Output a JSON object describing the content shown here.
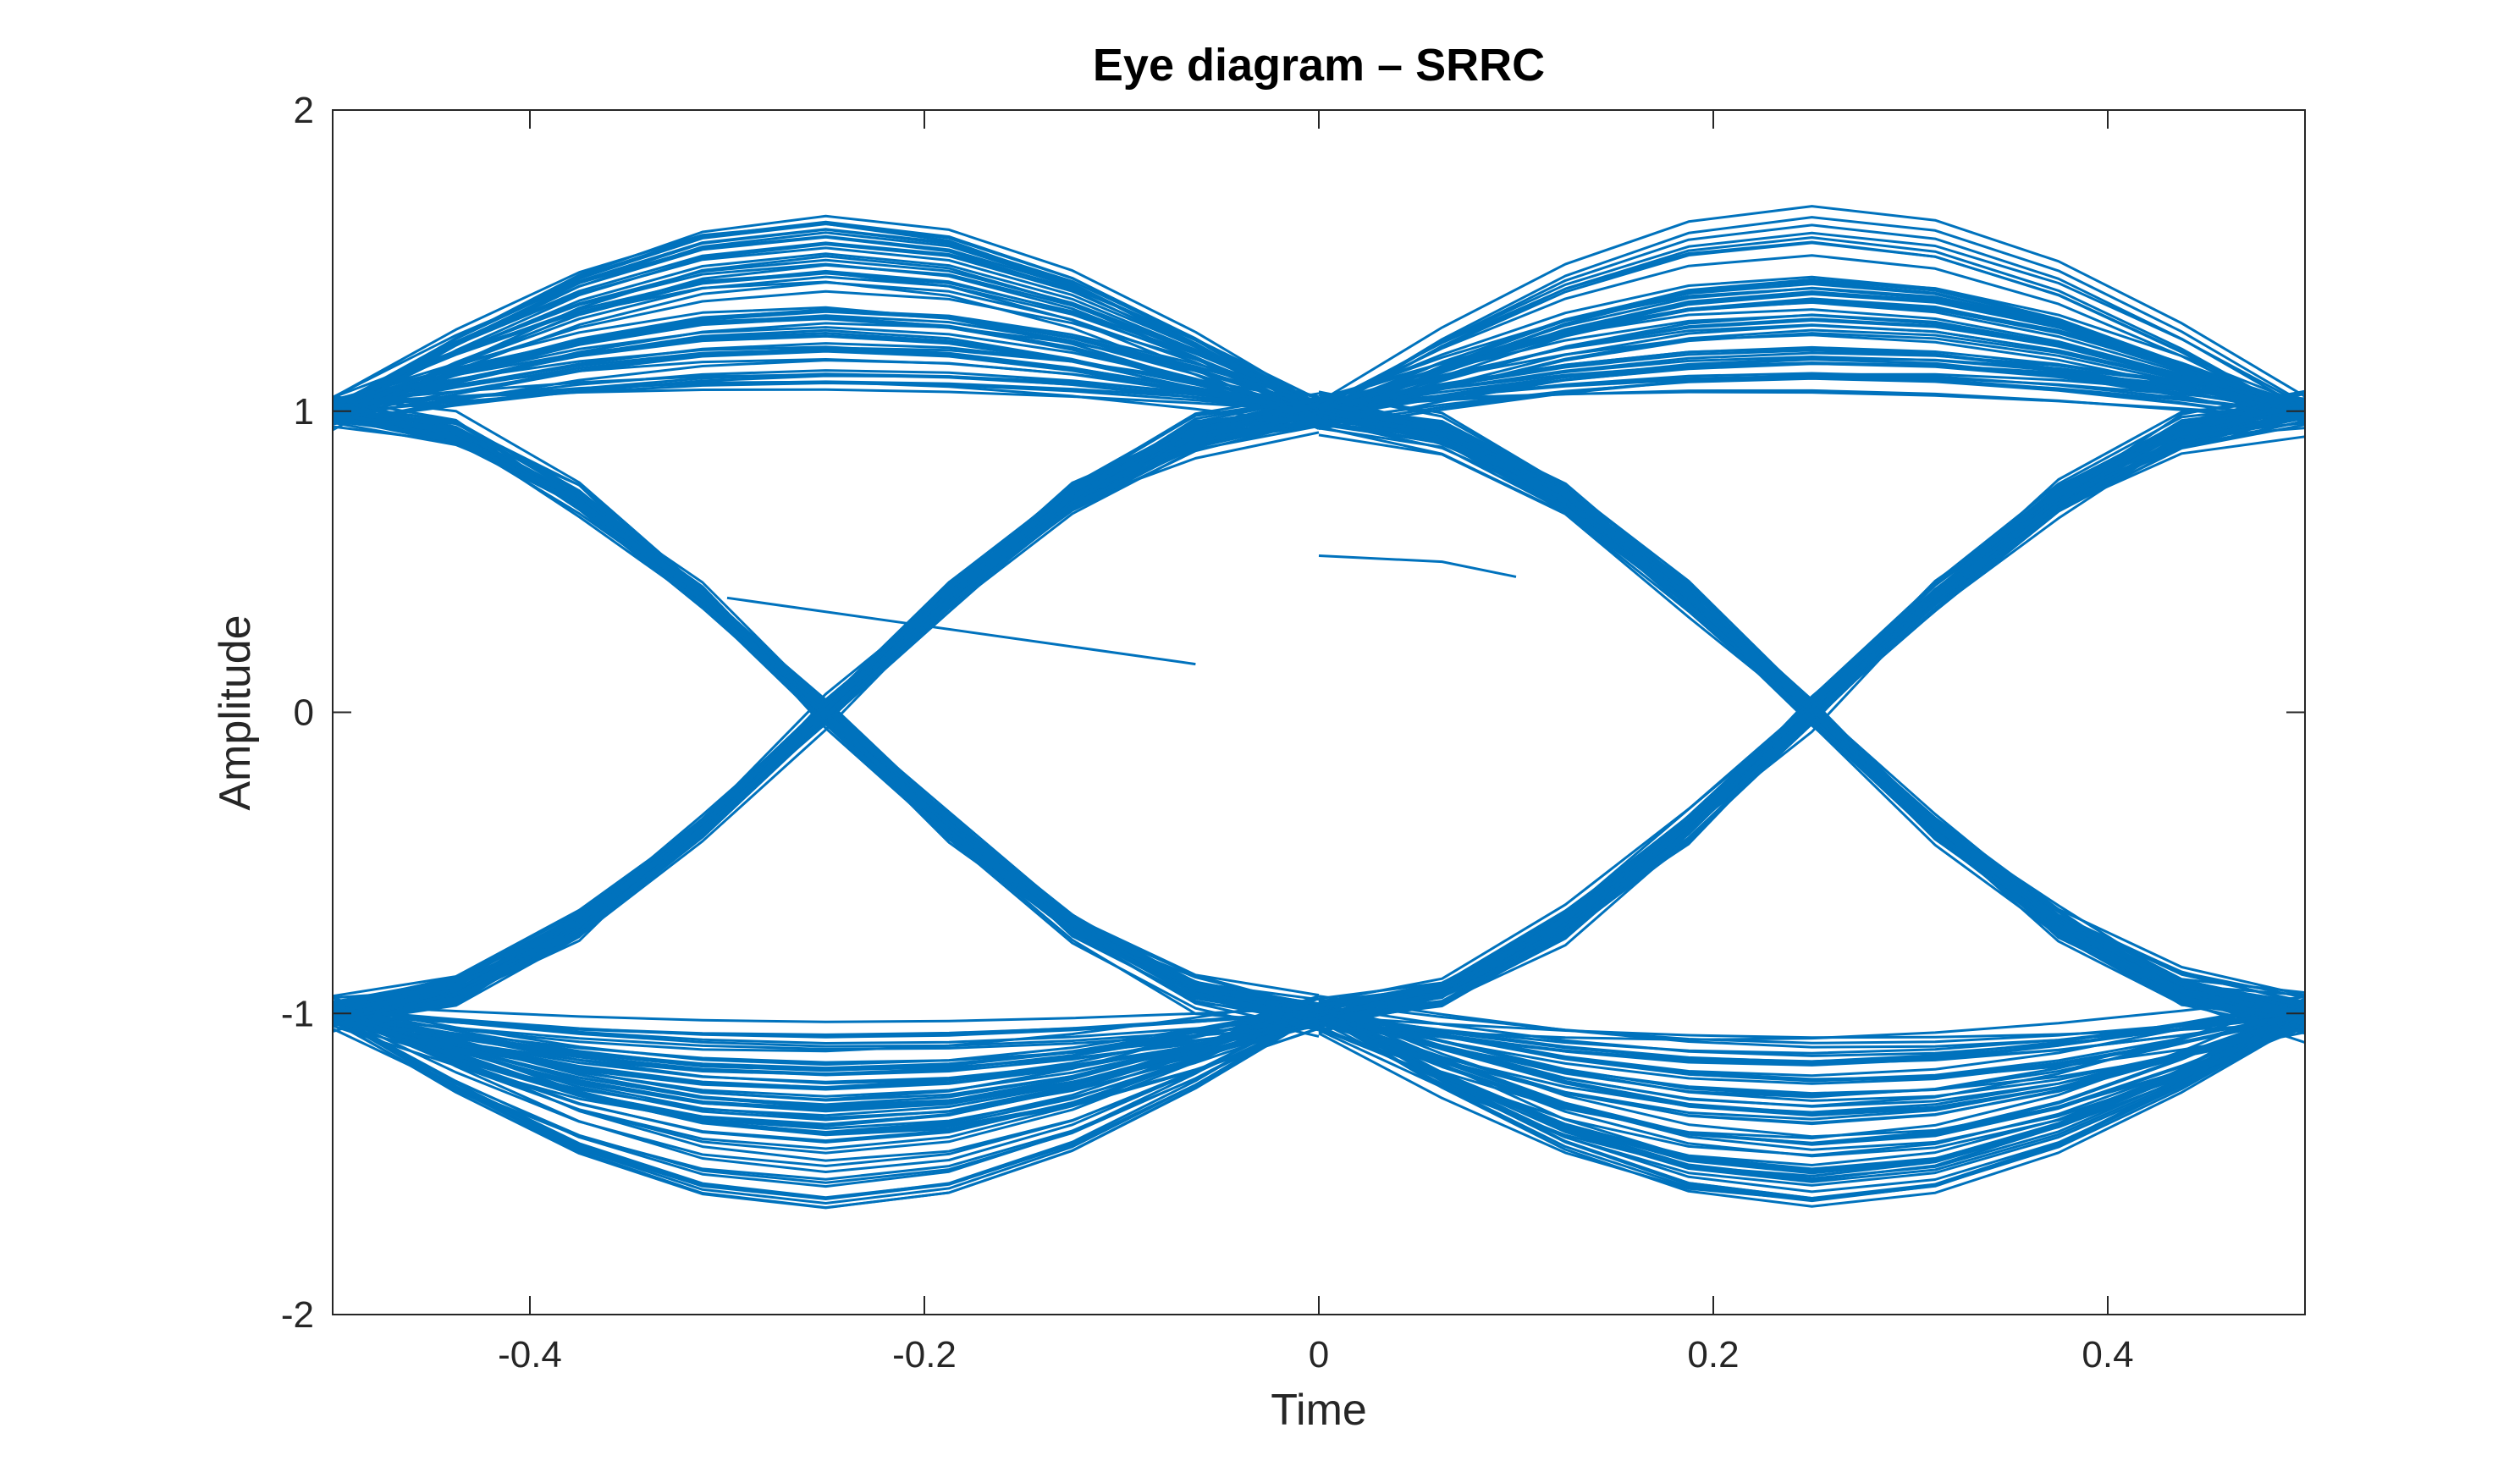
{
  "chart_data": {
    "type": "line",
    "title": "Eye diagram – SRRC",
    "xlabel": "Time",
    "ylabel": "Amplitude",
    "xlim": [
      -0.5,
      0.5
    ],
    "ylim": [
      -2,
      2
    ],
    "xticks": [
      -0.4,
      -0.2,
      0,
      0.2,
      0.4
    ],
    "xtick_labels": [
      "-0.4",
      "-0.2",
      "0",
      "0.2",
      "0.4"
    ],
    "yticks": [
      -2,
      -1,
      0,
      1,
      2
    ],
    "ytick_labels": [
      "-2",
      "-1",
      "0",
      "1",
      "2"
    ],
    "grid": false,
    "line_color": "#0072BD",
    "symbol_period": 0.5,
    "levels": [
      -1,
      1
    ],
    "trace_count": 220,
    "peak_amplitude_range": [
      0.8,
      1.65
    ],
    "zero_crossings": [
      -0.25,
      0.25
    ],
    "sample_instants": [
      -0.5,
      0,
      0.5
    ]
  }
}
